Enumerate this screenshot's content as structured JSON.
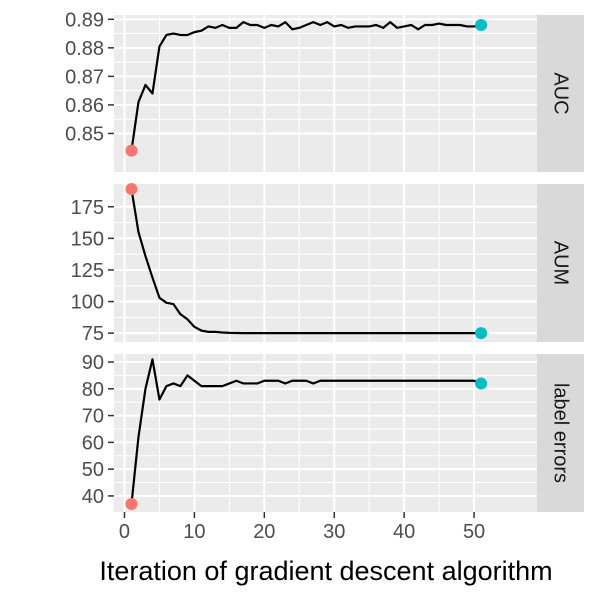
{
  "colors": {
    "panel_bg": "#ebebeb",
    "grid": "#ffffff",
    "strip_bg": "#d9d9d9",
    "line": "#000000",
    "start_point": "#f8766d",
    "end_point": "#00bfc4",
    "text": "#1a1a1a",
    "tick_text": "#4d4d4d"
  },
  "chart_data": {
    "type": "line",
    "xlabel": "Iteration of gradient descent algorithm",
    "xlim": [
      -1.5,
      59
    ],
    "x_ticks": [
      0,
      10,
      20,
      30,
      40,
      50
    ],
    "x_tick_labels": [
      "0",
      "10",
      "20",
      "30",
      "40",
      "50"
    ],
    "facets": [
      {
        "strip": "AUC",
        "ylim": [
          0.8365,
          0.8915
        ],
        "y_ticks": [
          0.85,
          0.86,
          0.87,
          0.88,
          0.89
        ],
        "y_tick_labels": [
          "0.85",
          "0.86",
          "0.87",
          "0.88",
          "0.89"
        ],
        "x": [
          1,
          2,
          3,
          4,
          5,
          6,
          7,
          8,
          9,
          10,
          11,
          12,
          13,
          14,
          15,
          16,
          17,
          18,
          19,
          20,
          21,
          22,
          23,
          24,
          25,
          26,
          27,
          28,
          29,
          30,
          31,
          32,
          33,
          34,
          35,
          36,
          37,
          38,
          39,
          40,
          41,
          42,
          43,
          44,
          45,
          46,
          47,
          48,
          49,
          50,
          51
        ],
        "y": [
          0.844,
          0.861,
          0.867,
          0.864,
          0.8805,
          0.8845,
          0.885,
          0.8845,
          0.8845,
          0.8855,
          0.886,
          0.8875,
          0.887,
          0.888,
          0.887,
          0.887,
          0.889,
          0.888,
          0.888,
          0.887,
          0.888,
          0.8875,
          0.889,
          0.8865,
          0.887,
          0.888,
          0.889,
          0.888,
          0.889,
          0.8875,
          0.888,
          0.887,
          0.8875,
          0.8875,
          0.8875,
          0.888,
          0.887,
          0.889,
          0.887,
          0.8875,
          0.888,
          0.8865,
          0.888,
          0.888,
          0.8885,
          0.888,
          0.888,
          0.888,
          0.8875,
          0.8875,
          0.888
        ],
        "start": {
          "x": 1,
          "y": 0.844
        },
        "end": {
          "x": 51,
          "y": 0.888
        }
      },
      {
        "strip": "AUM",
        "ylim": [
          68,
          193
        ],
        "y_ticks": [
          75,
          100,
          125,
          150,
          175
        ],
        "y_tick_labels": [
          "75",
          "100",
          "125",
          "150",
          "175"
        ],
        "x": [
          1,
          2,
          3,
          4,
          5,
          6,
          7,
          8,
          9,
          10,
          11,
          12,
          13,
          14,
          15,
          16,
          17,
          18,
          19,
          20,
          21,
          22,
          23,
          24,
          25,
          26,
          27,
          28,
          29,
          30,
          31,
          32,
          33,
          34,
          35,
          36,
          37,
          38,
          39,
          40,
          41,
          42,
          43,
          44,
          45,
          46,
          47,
          48,
          49,
          50,
          51
        ],
        "y": [
          189,
          155,
          136,
          119,
          103,
          99,
          98,
          90,
          86,
          80,
          77,
          76,
          76,
          75.5,
          75.2,
          75.1,
          75,
          75,
          75,
          75,
          75,
          75,
          75,
          75,
          75,
          75,
          75,
          75,
          75,
          75,
          75,
          75,
          75,
          75,
          75,
          75,
          75,
          75,
          75,
          75,
          75,
          75,
          75,
          75,
          75,
          75,
          75,
          75,
          75,
          75,
          75
        ],
        "start": {
          "x": 1,
          "y": 189
        },
        "end": {
          "x": 51,
          "y": 75
        }
      },
      {
        "strip": "label errors",
        "ylim": [
          34,
          93
        ],
        "y_ticks": [
          40,
          50,
          60,
          70,
          80,
          90
        ],
        "y_tick_labels": [
          "40",
          "50",
          "60",
          "70",
          "80",
          "90"
        ],
        "x": [
          1,
          2,
          3,
          4,
          5,
          6,
          7,
          8,
          9,
          10,
          11,
          12,
          13,
          14,
          15,
          16,
          17,
          18,
          19,
          20,
          21,
          22,
          23,
          24,
          25,
          26,
          27,
          28,
          29,
          30,
          31,
          32,
          33,
          34,
          35,
          36,
          37,
          38,
          39,
          40,
          41,
          42,
          43,
          44,
          45,
          46,
          47,
          48,
          49,
          50,
          51
        ],
        "y": [
          37,
          62,
          80,
          91,
          76,
          81,
          82,
          81,
          85,
          83,
          81,
          81,
          81,
          81,
          82,
          83,
          82,
          82,
          82,
          83,
          83,
          83,
          82,
          83,
          83,
          83,
          82,
          83,
          83,
          83,
          83,
          83,
          83,
          83,
          83,
          83,
          83,
          83,
          83,
          83,
          83,
          83,
          83,
          83,
          83,
          83,
          83,
          83,
          83,
          83,
          82
        ],
        "start": {
          "x": 1,
          "y": 37
        },
        "end": {
          "x": 51,
          "y": 82
        }
      }
    ]
  }
}
